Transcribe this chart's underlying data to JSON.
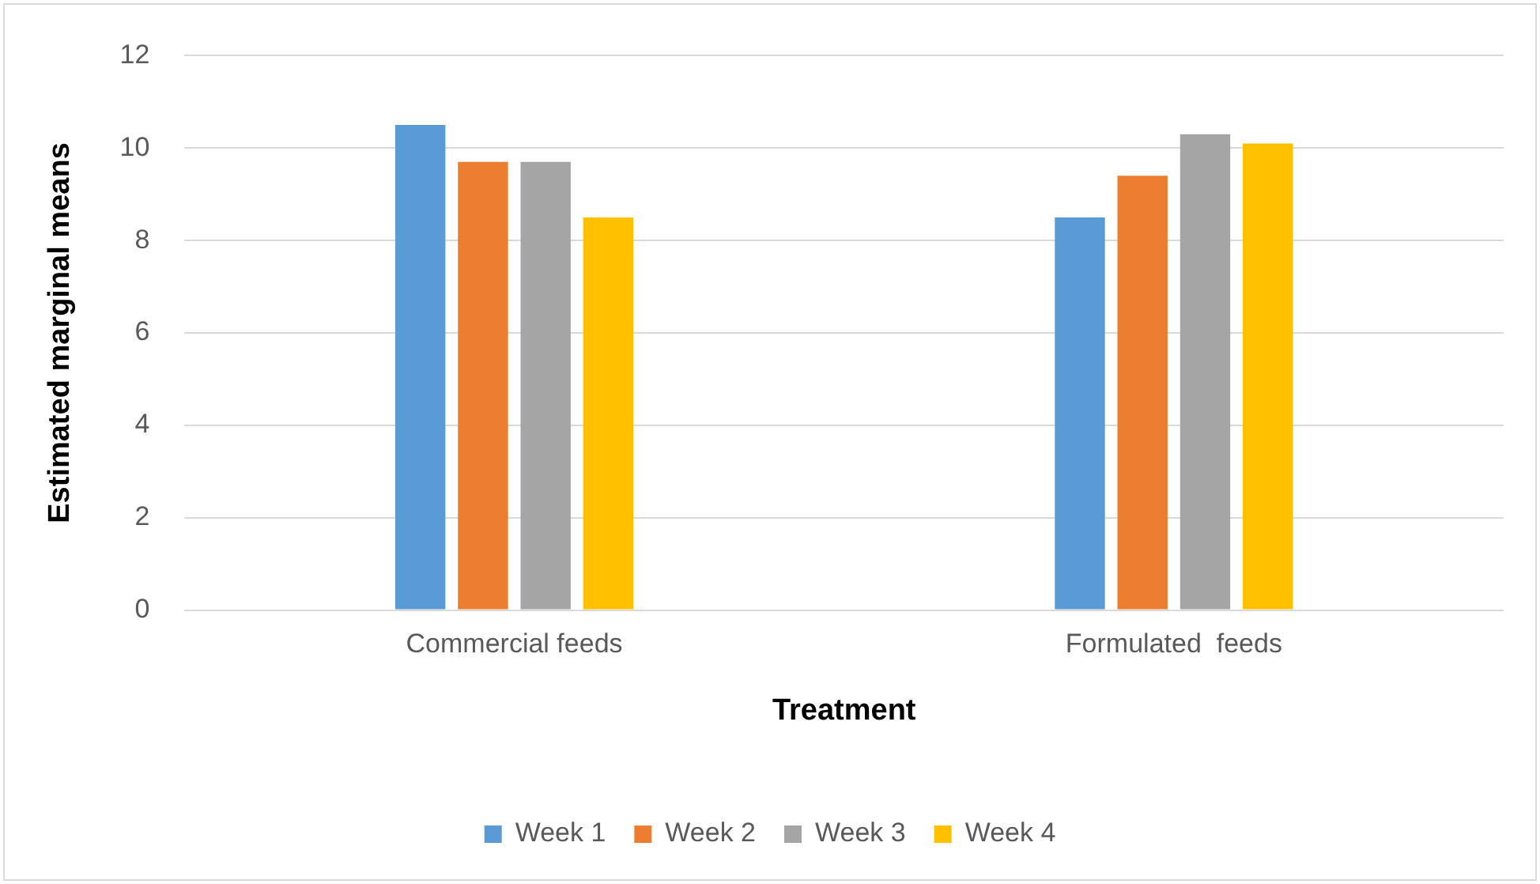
{
  "chart_data": {
    "type": "bar",
    "xlabel": "Treatment",
    "ylabel": "Estimated marginal means",
    "categories": [
      "Commercial feeds",
      "Formulated  feeds"
    ],
    "series": [
      {
        "name": "Week 1",
        "color": "#5b9bd5",
        "values": [
          10.5,
          8.5
        ]
      },
      {
        "name": "Week 2",
        "color": "#ed7d31",
        "values": [
          9.7,
          9.4
        ]
      },
      {
        "name": "Week 3",
        "color": "#a5a5a5",
        "values": [
          9.7,
          10.3
        ]
      },
      {
        "name": "Week 4",
        "color": "#ffc000",
        "values": [
          8.5,
          10.1
        ]
      }
    ],
    "ylim": [
      0,
      12
    ],
    "yticks": [
      0,
      2,
      4,
      6,
      8,
      10,
      12
    ],
    "grid": "y",
    "legend": "bottom"
  }
}
